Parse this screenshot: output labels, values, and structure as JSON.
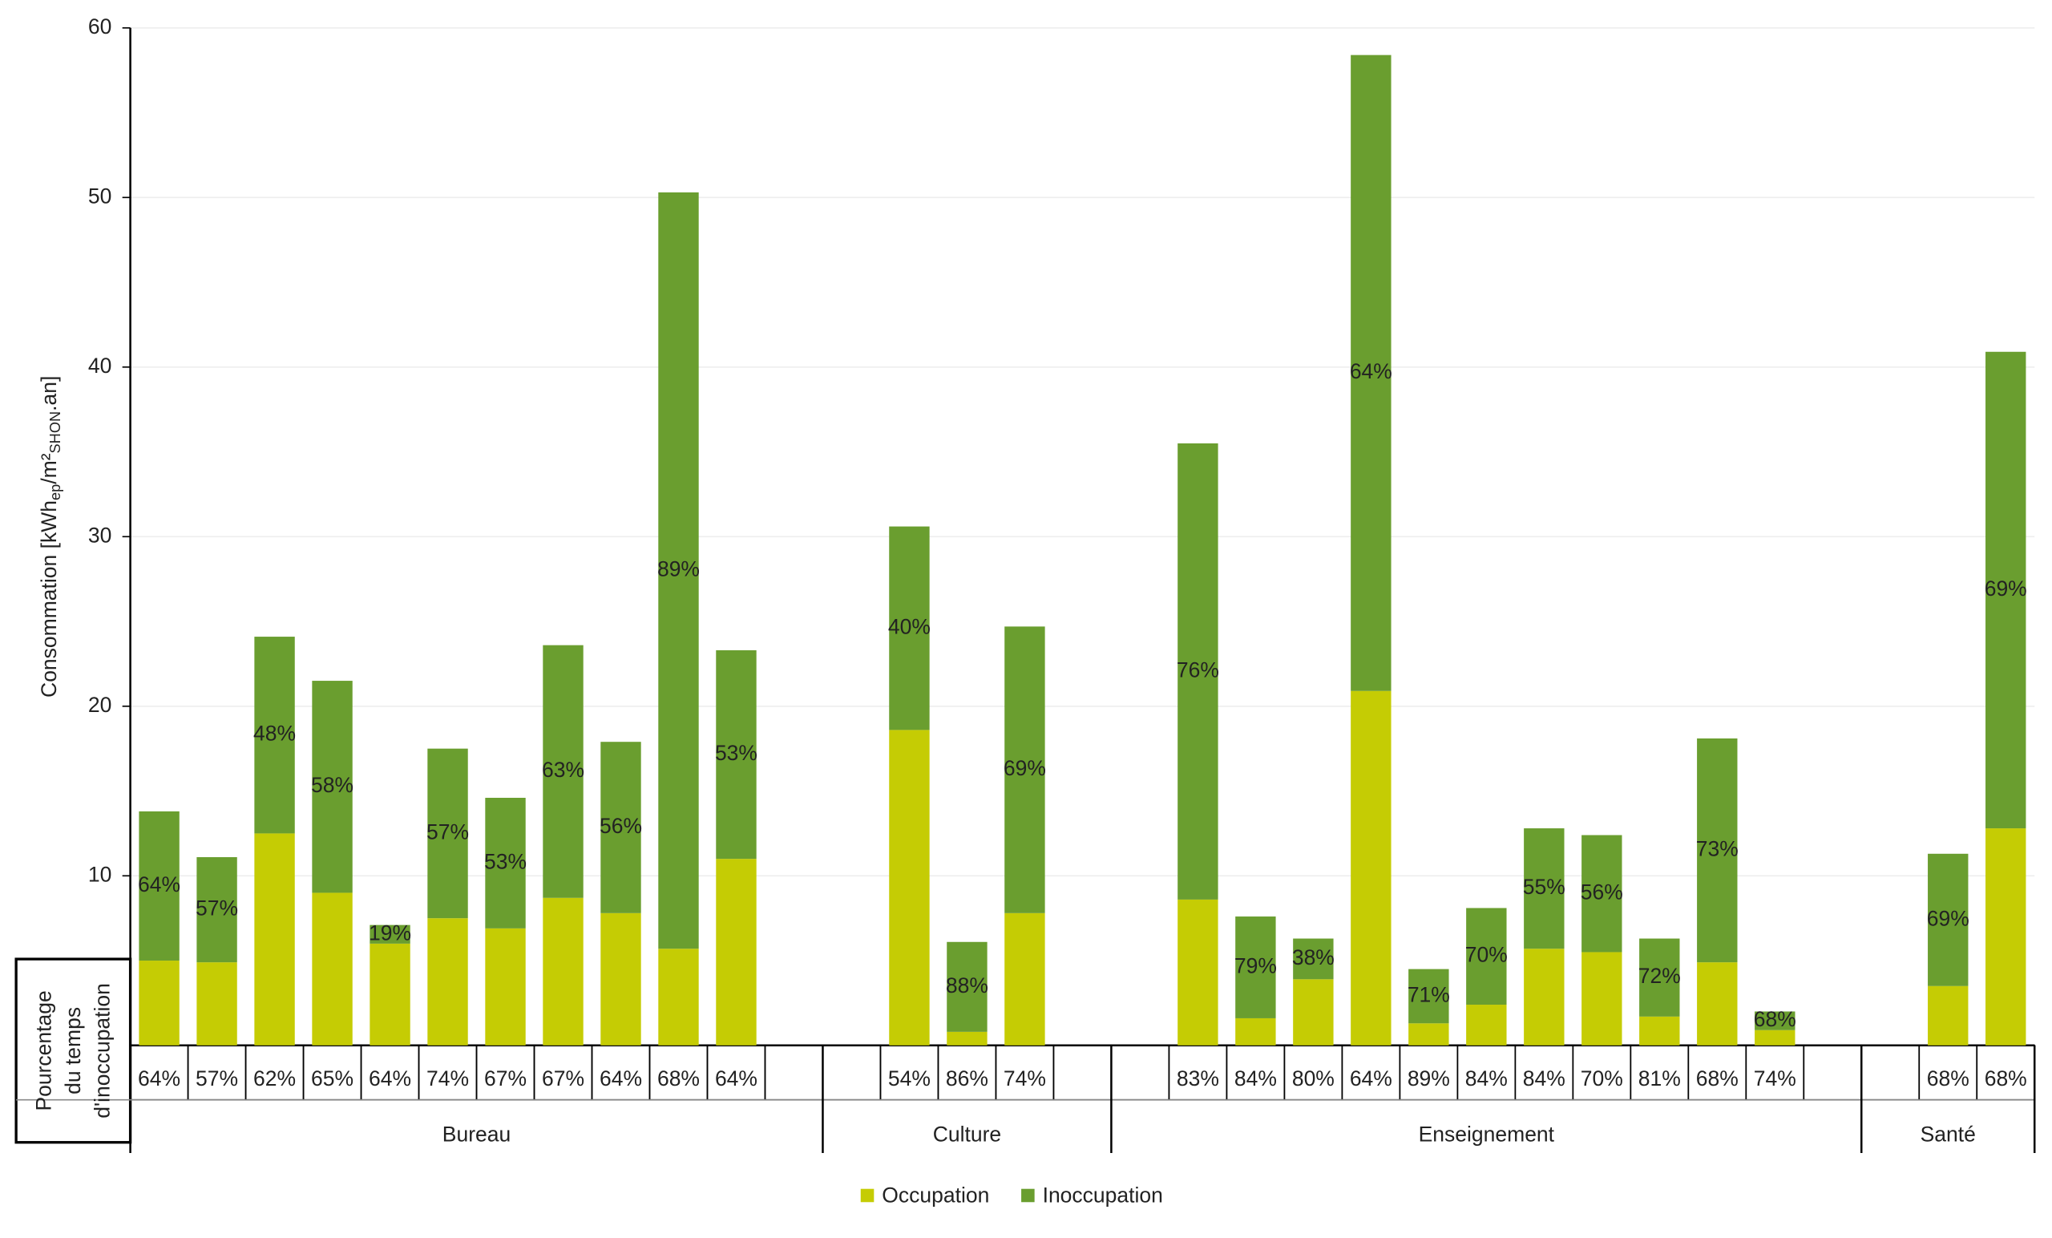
{
  "chart_data": {
    "type": "stacked_bar",
    "ylabel": {
      "main": "Consommation [kWh",
      "sub1": "ep",
      "mid": "/m²",
      "sub2": "SHON",
      "end": ".an]"
    },
    "table_header": [
      "Pourcentage",
      "du temps",
      "d'inoccupation"
    ],
    "groups": [
      "Bureau",
      "Culture",
      "Enseignement",
      "Santé"
    ],
    "categories": [
      "64%",
      "57%",
      "62%",
      "65%",
      "64%",
      "74%",
      "67%",
      "67%",
      "64%",
      "68%",
      "64%",
      null,
      null,
      "54%",
      "86%",
      "74%",
      null,
      null,
      "83%",
      "84%",
      "80%",
      "64%",
      "89%",
      "84%",
      "84%",
      "70%",
      "81%",
      "68%",
      "74%",
      null,
      null,
      "68%",
      "68%"
    ],
    "series": [
      {
        "name": "Occupation",
        "color": "#c5cc04",
        "values": [
          5.0,
          4.9,
          12.5,
          9.0,
          6.0,
          7.5,
          6.9,
          8.7,
          7.8,
          5.7,
          11.0,
          null,
          null,
          18.6,
          0.8,
          7.8,
          null,
          null,
          8.6,
          1.6,
          3.9,
          20.9,
          1.3,
          2.4,
          5.7,
          5.5,
          1.7,
          4.9,
          0.9,
          null,
          null,
          3.5,
          12.8
        ]
      },
      {
        "name": "Inoccupation",
        "color": "#6a9e2f",
        "values": [
          8.8,
          6.2,
          11.6,
          12.5,
          1.1,
          10.0,
          7.7,
          14.9,
          10.1,
          44.6,
          12.3,
          null,
          null,
          12.0,
          5.3,
          16.9,
          null,
          null,
          26.9,
          6.0,
          2.4,
          37.5,
          3.2,
          5.7,
          7.1,
          6.9,
          4.6,
          13.2,
          1.1,
          null,
          null,
          7.8,
          28.1
        ],
        "value_labels": [
          "64%",
          "57%",
          "48%",
          "58%",
          "19%",
          "57%",
          "53%",
          "63%",
          "56%",
          "89%",
          "53%",
          null,
          null,
          "40%",
          "88%",
          "69%",
          null,
          null,
          "76%",
          "79%",
          "38%",
          "64%",
          "71%",
          "70%",
          "55%",
          "56%",
          "72%",
          "73%",
          "68%",
          null,
          null,
          "69%",
          "69%"
        ]
      }
    ],
    "ylim": [
      0,
      60
    ],
    "yticks": [
      10,
      20,
      30,
      40,
      50,
      60
    ],
    "grid": true,
    "legend": "bottom"
  }
}
